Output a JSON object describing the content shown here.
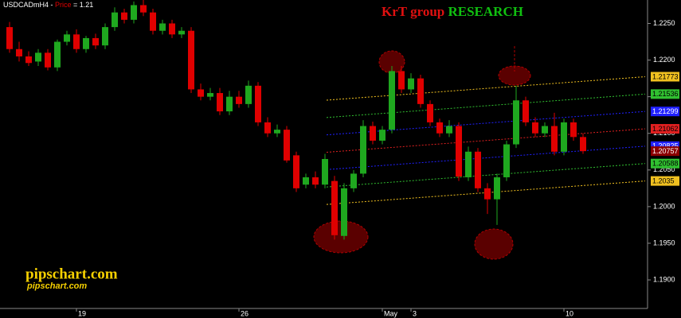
{
  "chart_data": {
    "type": "candlestick",
    "symbol": "USDCADmH4 - ",
    "price_word": "Price",
    "price_text": " = 1.21",
    "title_part1": "KrT group",
    "title_part2": "RESEARCH",
    "watermark": "pipschart.com",
    "watermark_sub": "pipschart.com",
    "categories": [
      null,
      null,
      null,
      null,
      null,
      null,
      null,
      "19",
      null,
      null,
      null,
      null,
      null,
      null,
      null,
      null,
      null,
      null,
      null,
      null,
      null,
      null,
      null,
      null,
      "26",
      null,
      null,
      null,
      null,
      null,
      null,
      null,
      null,
      null,
      null,
      null,
      null,
      null,
      null,
      "May",
      null,
      null,
      "3",
      null,
      null,
      null,
      null,
      null,
      null,
      null,
      null,
      null,
      null,
      null,
      null,
      null,
      null,
      null,
      "10",
      null,
      null
    ],
    "open": [
      1.2245,
      1.2215,
      1.2205,
      1.2198,
      1.221,
      1.219,
      1.2225,
      1.2235,
      1.2215,
      1.223,
      1.222,
      1.2245,
      1.2265,
      1.2255,
      1.2275,
      1.2265,
      1.224,
      1.225,
      1.2235,
      1.224,
      1.216,
      1.215,
      1.2155,
      1.213,
      1.215,
      1.214,
      1.2165,
      1.2115,
      1.21,
      1.2105,
      1.207,
      1.203,
      1.204,
      1.203,
      1.2035,
      1.196,
      1.2025,
      1.2045,
      1.211,
      1.209,
      1.2105,
      1.2185,
      1.216,
      1.2175,
      1.214,
      1.2115,
      1.21,
      1.211,
      1.204,
      1.2075,
      1.2025,
      1.201,
      1.204,
      1.2085,
      1.2145,
      1.2115,
      1.21,
      1.211,
      1.2075,
      1.2115,
      1.2095
    ],
    "high": [
      1.2252,
      1.2225,
      1.2212,
      1.2215,
      1.2215,
      1.2228,
      1.224,
      1.2242,
      1.2233,
      1.2236,
      1.225,
      1.2272,
      1.227,
      1.228,
      1.2282,
      1.227,
      1.2255,
      1.2255,
      1.2245,
      1.2245,
      1.2168,
      1.2162,
      1.2162,
      1.2158,
      1.2158,
      1.2172,
      1.217,
      1.2122,
      1.2112,
      1.211,
      1.2075,
      1.2045,
      1.2048,
      1.2072,
      1.2042,
      1.2032,
      1.205,
      1.2118,
      1.2116,
      1.211,
      1.2192,
      1.2192,
      1.2182,
      1.218,
      1.2145,
      1.212,
      1.2118,
      1.2115,
      1.2082,
      1.208,
      1.2032,
      1.2045,
      1.209,
      1.2165,
      1.215,
      1.2122,
      1.2115,
      1.2128,
      1.212,
      1.212,
      1.21
    ],
    "low": [
      1.221,
      1.2198,
      1.2192,
      1.2192,
      1.2186,
      1.2185,
      1.222,
      1.221,
      1.221,
      1.2215,
      1.2215,
      1.224,
      1.225,
      1.225,
      1.226,
      1.2235,
      1.2235,
      1.223,
      1.223,
      1.2155,
      1.2145,
      1.2145,
      1.2125,
      1.2125,
      1.2135,
      1.2135,
      1.211,
      1.2095,
      1.2095,
      1.206,
      1.202,
      1.2025,
      1.2025,
      1.2025,
      1.1955,
      1.1955,
      1.202,
      1.204,
      1.2085,
      1.2085,
      1.21,
      1.2155,
      1.2155,
      1.2135,
      1.211,
      1.2095,
      1.2095,
      1.2035,
      1.2035,
      1.202,
      1.199,
      1.1975,
      1.2035,
      1.208,
      1.211,
      1.2095,
      1.2095,
      1.207,
      1.207,
      1.209,
      1.2072
    ],
    "close": [
      1.2215,
      1.2205,
      1.2196,
      1.221,
      1.219,
      1.2225,
      1.2235,
      1.2215,
      1.223,
      1.222,
      1.2245,
      1.2265,
      1.2255,
      1.2275,
      1.2265,
      1.224,
      1.225,
      1.2235,
      1.224,
      1.216,
      1.215,
      1.2155,
      1.213,
      1.215,
      1.214,
      1.2165,
      1.2115,
      1.21,
      1.2105,
      1.2063,
      1.2025,
      1.204,
      1.203,
      1.2065,
      1.1961,
      1.2025,
      1.2045,
      1.211,
      1.209,
      1.2105,
      1.2185,
      1.216,
      1.2175,
      1.214,
      1.2115,
      1.21,
      1.211,
      1.2041,
      1.2075,
      1.2025,
      1.201,
      1.204,
      1.2085,
      1.2145,
      1.2115,
      1.21,
      1.211,
      1.2075,
      1.2115,
      1.2095,
      1.20757
    ],
    "up_color": "#1fa81f",
    "down_color": "#e00000",
    "ylim": [
      1.1861,
      1.2282
    ],
    "yticks": [
      {
        "value": 1.19,
        "label": "1.1900"
      },
      {
        "value": 1.195,
        "label": "1.1950"
      },
      {
        "value": 1.2,
        "label": "1.2000"
      },
      {
        "value": 1.205,
        "label": "1.2050"
      },
      {
        "value": 1.21,
        "label": "1.2100"
      },
      {
        "value": 1.215,
        "label": "1.2150"
      },
      {
        "value": 1.22,
        "label": "1.2200"
      },
      {
        "value": 1.225,
        "label": "1.2250"
      }
    ],
    "grid": false,
    "levels": [
      {
        "start": 1.21453,
        "value": 1.21773,
        "color": "#f0c020",
        "text_color": "#000"
      },
      {
        "start": 1.21216,
        "value": 1.21536,
        "color": "#30c030",
        "text_color": "#000"
      },
      {
        "start": 1.20979,
        "value": 1.21299,
        "color": "#2020ff",
        "text_color": "#fff"
      },
      {
        "start": 1.20742,
        "value": 1.21062,
        "color": "#e02020",
        "text_color": "#000"
      },
      {
        "start": 1.20505,
        "value": 1.20825,
        "color": "#2020ff",
        "text_color": "#fff"
      },
      {
        "start": 1.20268,
        "value": 1.20588,
        "color": "#30c030",
        "text_color": "#000"
      },
      {
        "start": 1.2003,
        "value": 1.2035,
        "color": "#f0c020",
        "text_color": "#000"
      }
    ],
    "last_price": {
      "value": 1.20757,
      "color": "#8b0000"
    }
  }
}
